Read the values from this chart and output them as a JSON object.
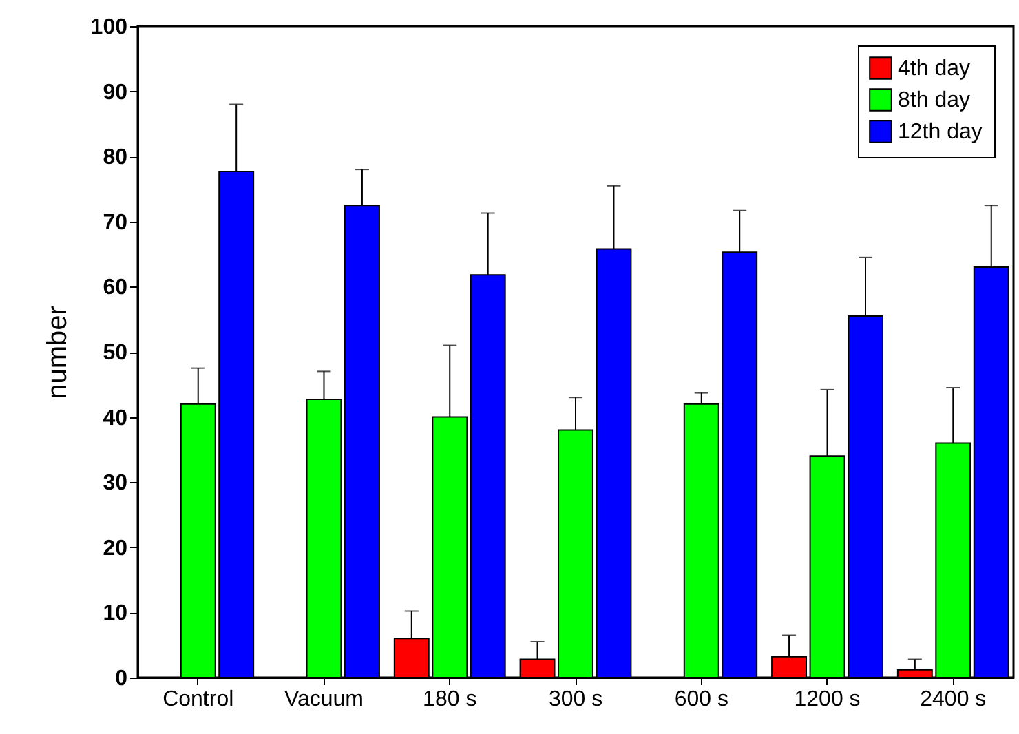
{
  "chart_data": {
    "type": "bar",
    "ylabel": "number",
    "categories": [
      "Control",
      "Vacuum",
      "180 s",
      "300 s",
      "600 s",
      "1200 s",
      "2400 s"
    ],
    "series": [
      {
        "name": "4th day",
        "color": "#ff0000",
        "values": [
          null,
          null,
          6,
          2.8,
          null,
          3.2,
          1.2
        ],
        "errors": [
          null,
          null,
          [
            6,
            10.2
          ],
          [
            2.8,
            5.5
          ],
          null,
          [
            3.2,
            6.5
          ],
          [
            1.2,
            2.8
          ]
        ]
      },
      {
        "name": "8th day",
        "color": "#00ff00",
        "values": [
          42,
          42.7,
          40,
          38,
          42,
          34,
          36
        ],
        "errors": [
          [
            42,
            47.5
          ],
          [
            42.7,
            47
          ],
          [
            40,
            51
          ],
          [
            38,
            43
          ],
          [
            42,
            43.7
          ],
          [
            34,
            44.2
          ],
          [
            36,
            44.5
          ]
        ]
      },
      {
        "name": "12th day",
        "color": "#0000ff",
        "values": [
          77.7,
          72.5,
          61.8,
          65.8,
          65.3,
          55.5,
          63
        ],
        "errors": [
          [
            77.7,
            88
          ],
          [
            72.5,
            78
          ],
          [
            61.8,
            71.3
          ],
          [
            65.8,
            75.5
          ],
          [
            65.3,
            71.7
          ],
          [
            55.5,
            64.5
          ],
          [
            63,
            72.5
          ]
        ]
      }
    ],
    "ylim": [
      0,
      100
    ],
    "yticks": [
      0,
      10,
      20,
      30,
      40,
      50,
      60,
      70,
      80,
      90,
      100
    ],
    "legend": "top right"
  }
}
